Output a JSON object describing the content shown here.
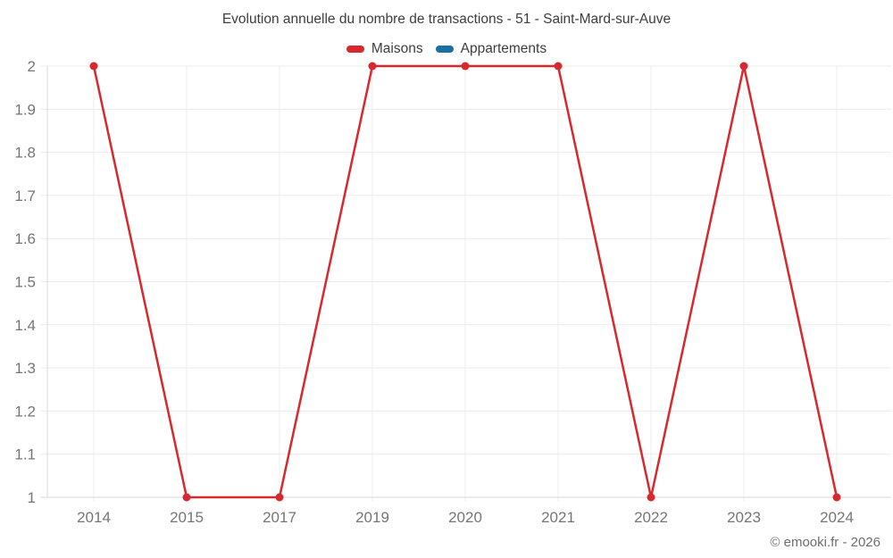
{
  "title": "Evolution annuelle du nombre de transactions - 51 - Saint-Mard-sur-Auve",
  "legend": [
    {
      "label": "Maisons",
      "color": "#d7282e"
    },
    {
      "label": "Appartements",
      "color": "#1a6fa3"
    }
  ],
  "footer": {
    "copyright": "© emooki.fr - 2026"
  },
  "colors": {
    "grid": "#ececec",
    "axis": "#d8d8d8",
    "tick_text": "#757575"
  },
  "chart_data": {
    "type": "line",
    "title": "Evolution annuelle du nombre de transactions - 51 - Saint-Mard-sur-Auve",
    "categories": [
      "2014",
      "2015",
      "2017",
      "2019",
      "2020",
      "2021",
      "2022",
      "2023",
      "2024"
    ],
    "series": [
      {
        "name": "Maisons",
        "color": "#d7282e",
        "values": [
          2,
          1,
          1,
          2,
          2,
          2,
          1,
          2,
          1
        ]
      },
      {
        "name": "Appartements",
        "color": "#1a6fa3",
        "values": []
      }
    ],
    "ylim": [
      1,
      2
    ],
    "yticks": [
      "2",
      "1.9",
      "1.8",
      "1.7",
      "1.6",
      "1.5",
      "1.4",
      "1.3",
      "1.2",
      "1.1",
      "1"
    ],
    "xlabel": "",
    "ylabel": "",
    "grid": true,
    "legend_position": "top"
  }
}
